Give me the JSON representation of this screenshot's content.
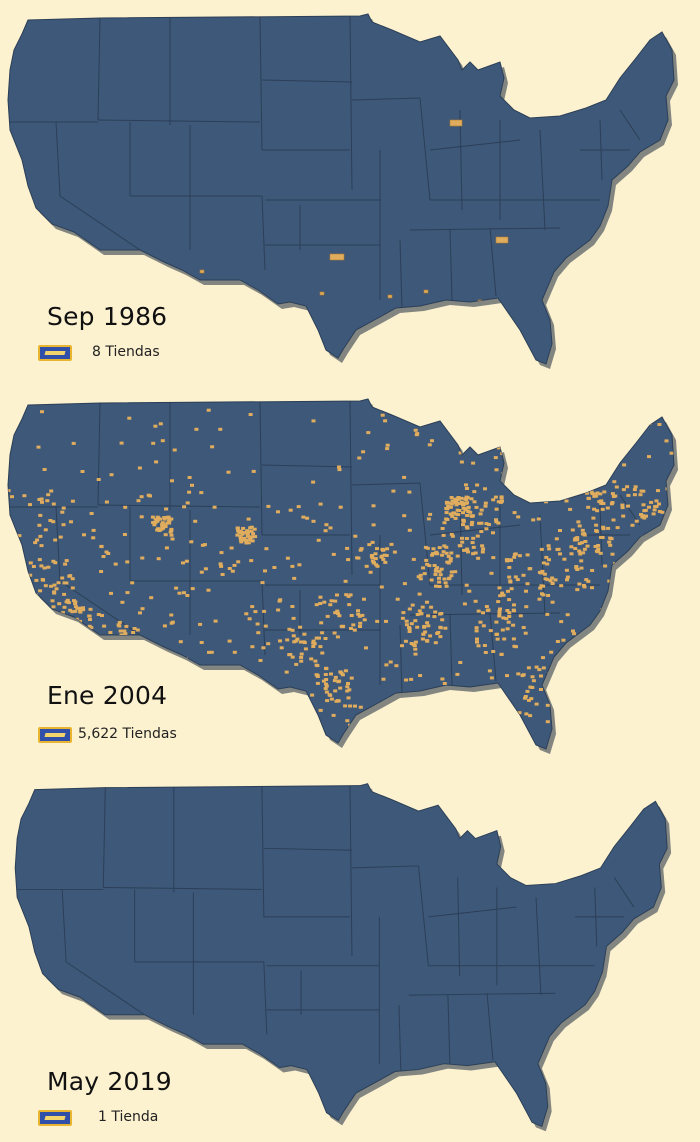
{
  "colors": {
    "background": "#fdf2d0",
    "land": "#3e5879",
    "state_border": "#2b3f57",
    "store_marker": "#e0ad5e",
    "legend_icon_fill": "#2f4fa8",
    "legend_icon_border": "#e9b531"
  },
  "icons": {
    "legend": "video-store-card-icon"
  },
  "panels": [
    {
      "date": "Sep 1986",
      "store_count": "8 Tiendas",
      "stores": 8
    },
    {
      "date": "Ene 2004",
      "store_count": "5,622 Tiendas",
      "stores": 5622
    },
    {
      "date": "May 2019",
      "store_count": "1 Tienda",
      "stores": 1
    }
  ]
}
